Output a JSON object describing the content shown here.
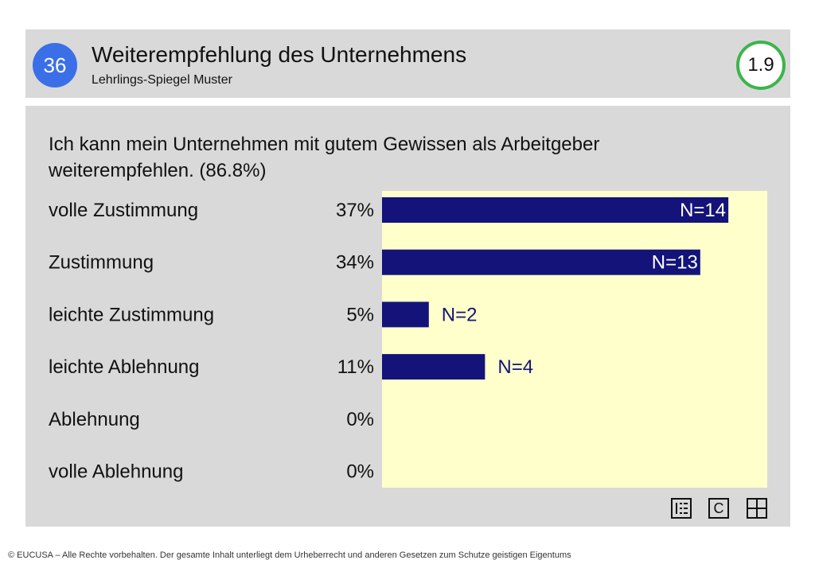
{
  "header": {
    "page_number": "36",
    "title": "Weiterempfehlung des Unternehmens",
    "subtitle": "Lehrlings-Spiegel Muster",
    "score": "1.9",
    "colors": {
      "number_badge": "#3a6fe8",
      "score_ring": "#3cb44b"
    }
  },
  "question": "Ich kann mein Unternehmen mit gutem Gewissen als Arbeitgeber weiterempfehlen. (86.8%)",
  "chart_data": {
    "type": "bar",
    "orientation": "horizontal",
    "categories": [
      "volle Zustimmung",
      "Zustimmung",
      "leichte Zustimmung",
      "leichte Ablehnung",
      "Ablehnung",
      "volle Ablehnung"
    ],
    "percent_labels": [
      "37%",
      "34%",
      "5%",
      "11%",
      "0%",
      "0%"
    ],
    "values": [
      37,
      34,
      5,
      11,
      0,
      0
    ],
    "n_labels": [
      "N=14",
      "N=13",
      "N=2",
      "N=4",
      "",
      ""
    ],
    "colors": {
      "bar": "#13137a",
      "plot_background": "#ffffcc"
    }
  },
  "toolbar": {
    "icons": [
      "list-view-icon",
      "c-icon",
      "grid-icon"
    ],
    "c_label": "C"
  },
  "footer": "© EUCUSA – Alle Rechte vorbehalten. Der gesamte Inhalt unterliegt dem Urheberrecht und anderen Gesetzen zum Schutze geistigen Eigentums"
}
